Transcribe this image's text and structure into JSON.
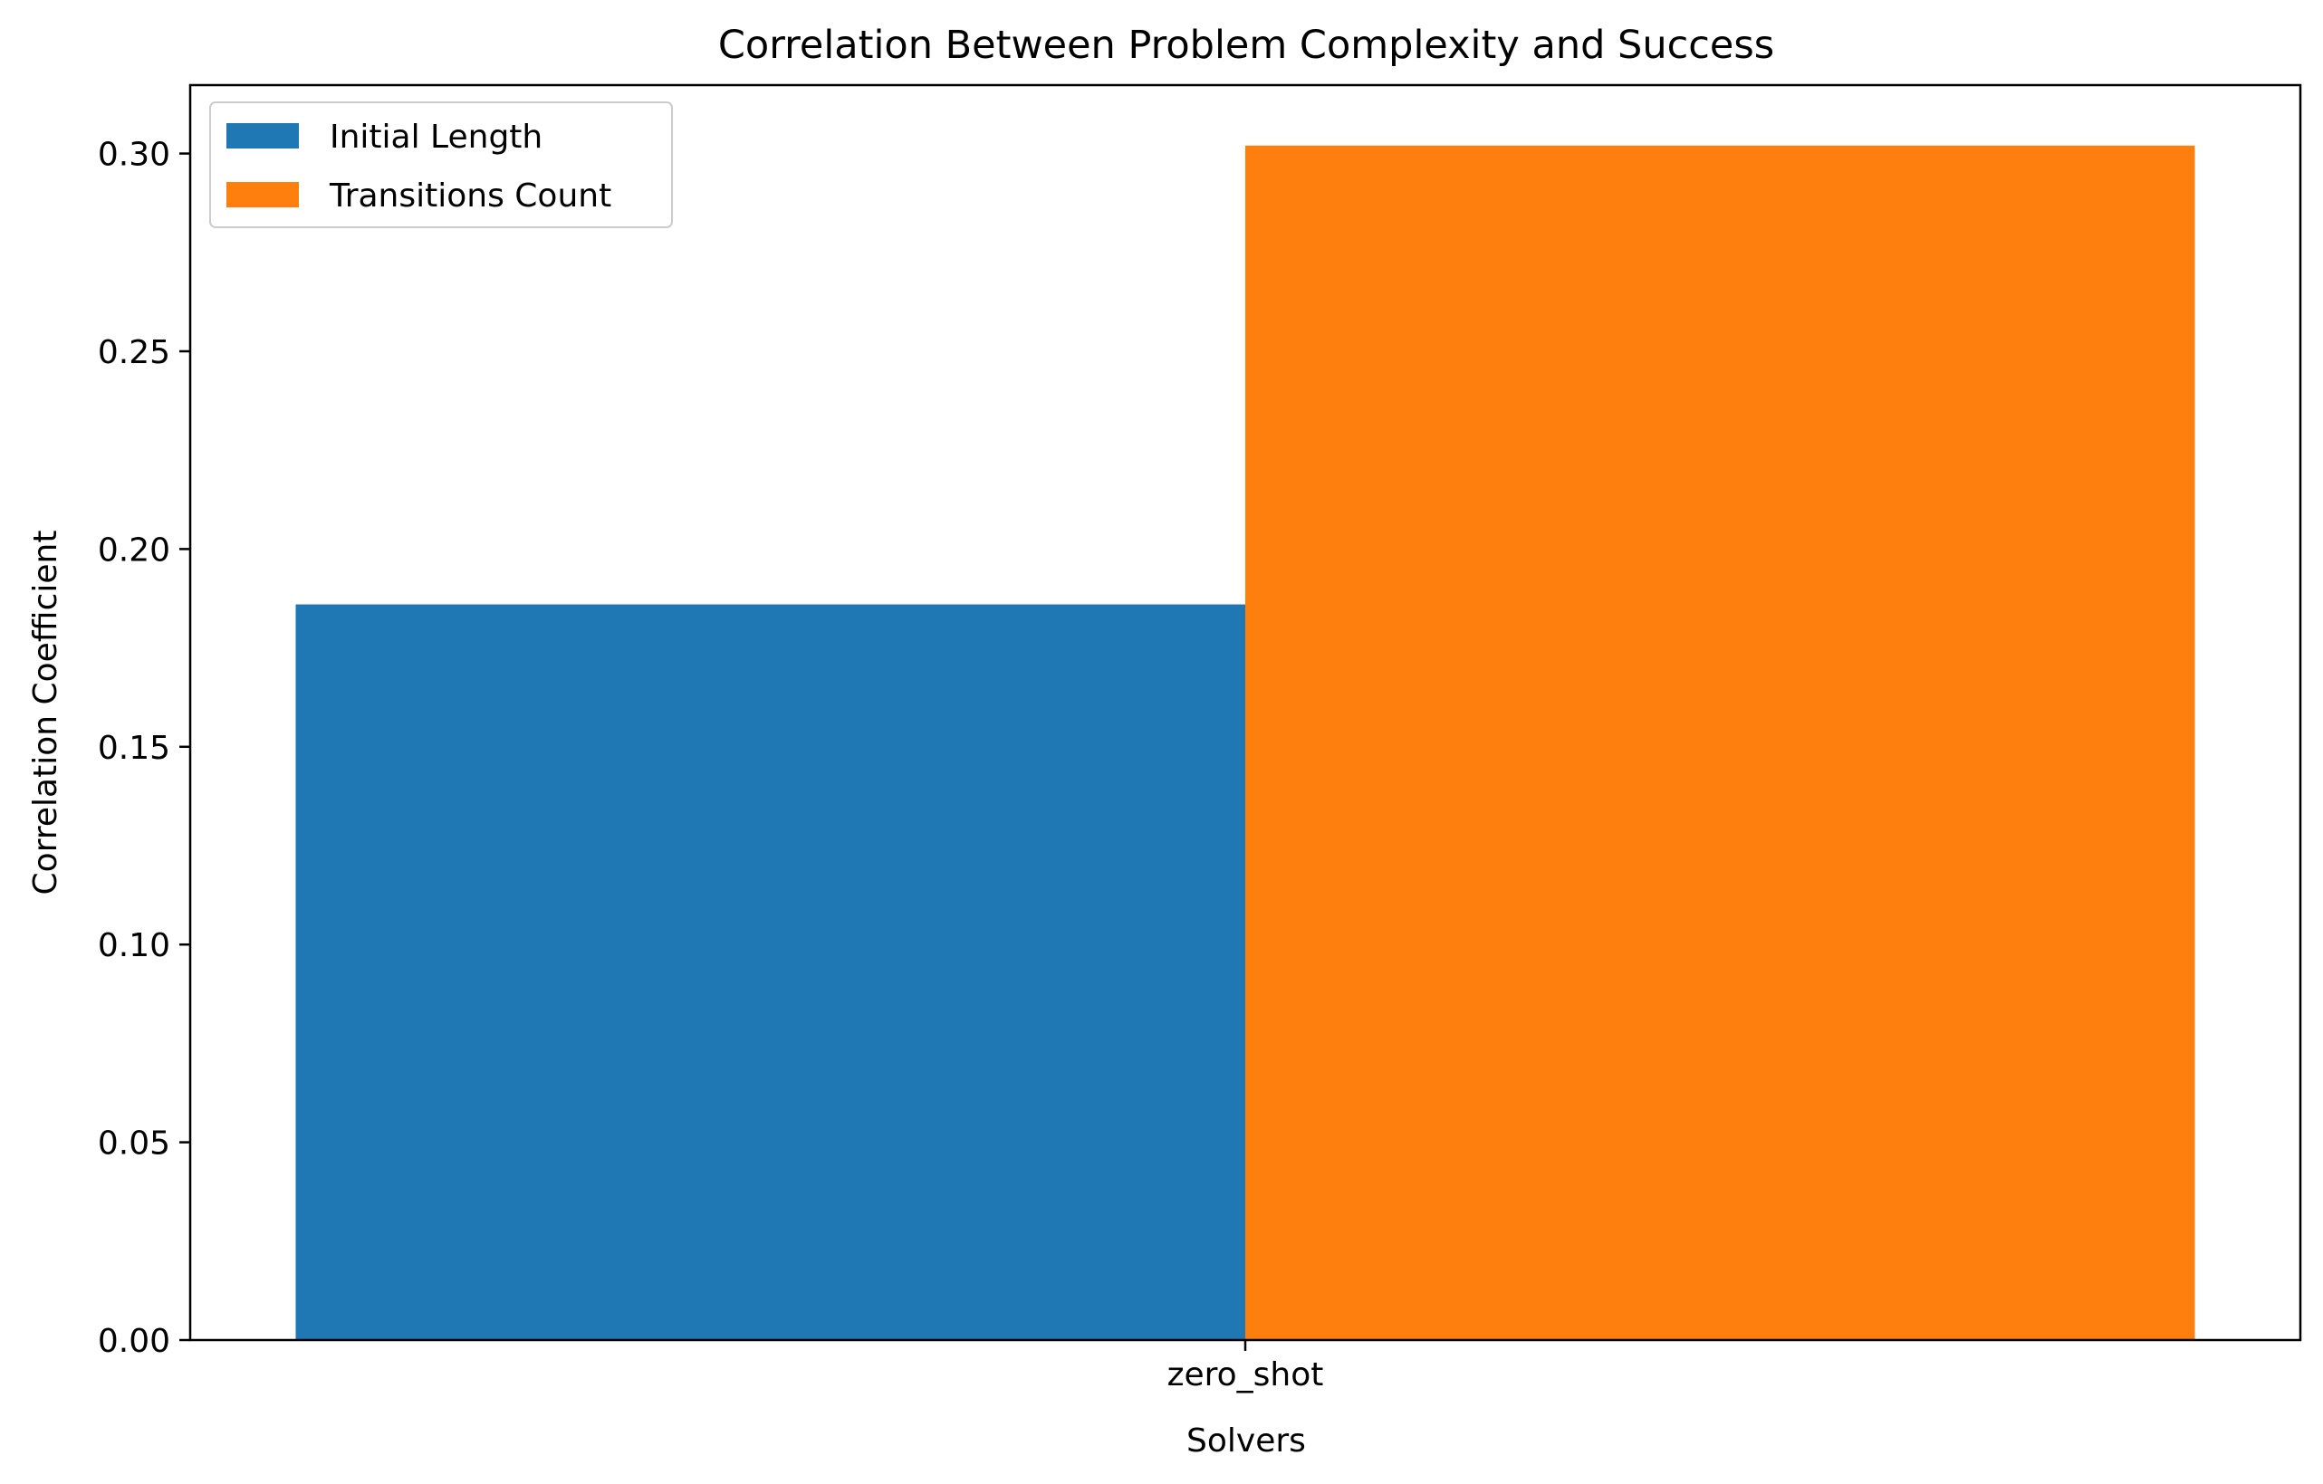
{
  "chart_data": {
    "type": "bar",
    "title": "Correlation Between Problem Complexity and Success",
    "xlabel": "Solvers",
    "ylabel": "Correlation Coefficient",
    "categories": [
      "zero_shot"
    ],
    "series": [
      {
        "name": "Initial Length",
        "values": [
          0.186
        ],
        "color": "#1f77b4"
      },
      {
        "name": "Transitions Count",
        "values": [
          0.302
        ],
        "color": "#ff7f0e"
      }
    ],
    "ylim": [
      0,
      0.3173
    ],
    "yticks": [
      0.0,
      0.05,
      0.1,
      0.15,
      0.2,
      0.25,
      0.3
    ],
    "ytick_labels": [
      "0.00",
      "0.05",
      "0.10",
      "0.15",
      "0.20",
      "0.25",
      "0.30"
    ],
    "grid": false,
    "legend_position": "top-left"
  }
}
